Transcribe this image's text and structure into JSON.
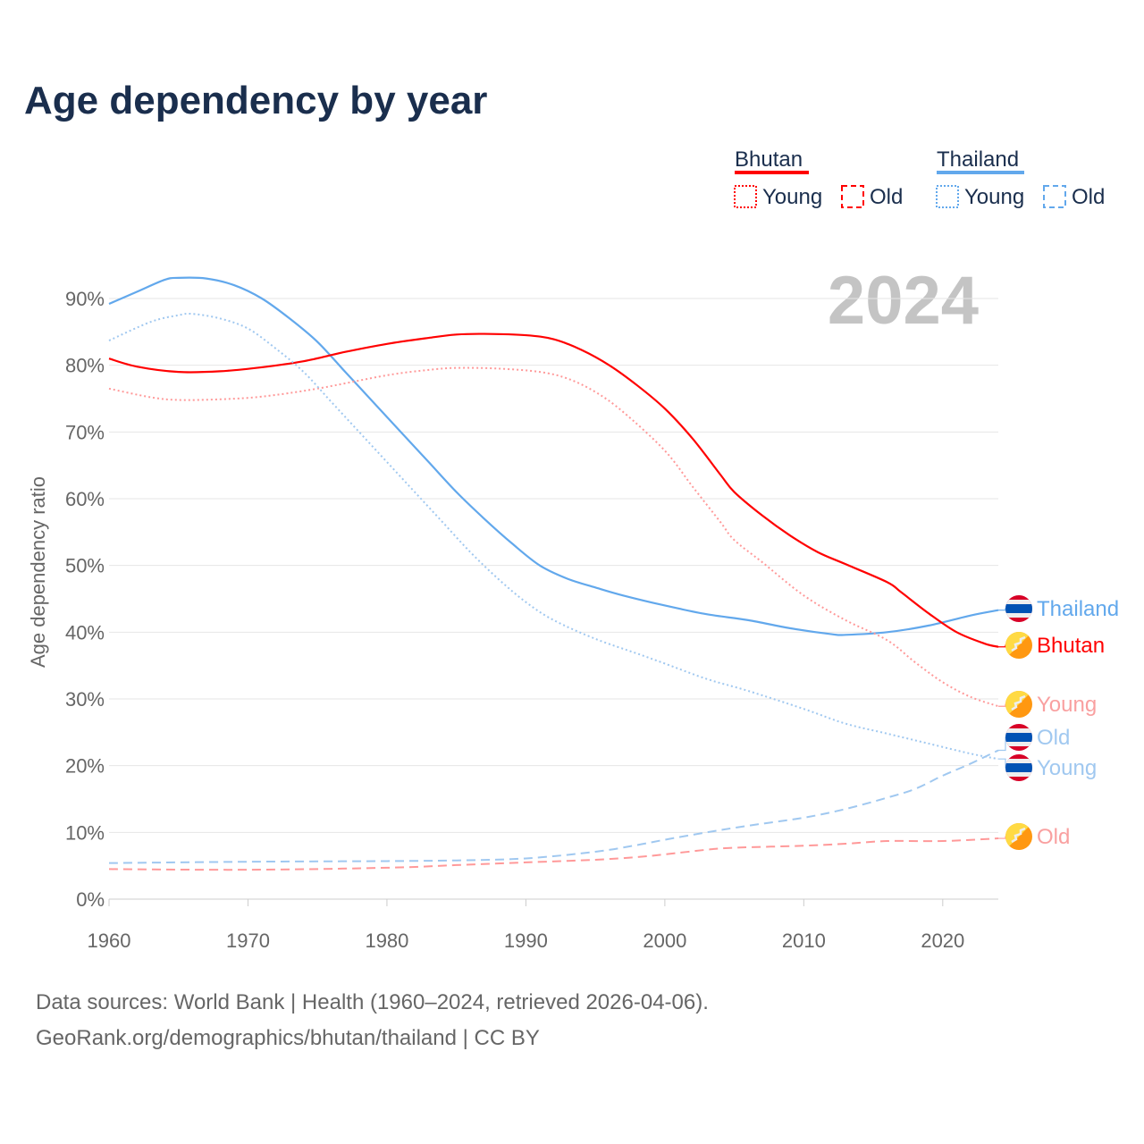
{
  "title": "Age dependency by year",
  "year_badge": "2024",
  "sources": [
    "Data sources: World Bank | Health (1960–2024, retrieved 2026-04-06).",
    "GeoRank.org/demographics/bhutan/thailand | CC BY"
  ],
  "legend": {
    "groups": [
      {
        "name": "Bhutan",
        "color": "#ff0000",
        "items": [
          "Young",
          "Old"
        ]
      },
      {
        "name": "Thailand",
        "color": "#62a8ec",
        "items": [
          "Young",
          "Old"
        ]
      }
    ]
  },
  "chart_data": {
    "type": "line",
    "title": "Age dependency by year",
    "xlabel": "",
    "ylabel": "Age dependency ratio",
    "xlim": [
      1960,
      2024
    ],
    "ylim": [
      0,
      90
    ],
    "xticks": [
      "1960",
      "1970",
      "1980",
      "1990",
      "2000",
      "2010",
      "2020"
    ],
    "yticks": [
      "0%",
      "10%",
      "20%",
      "30%",
      "40%",
      "50%",
      "60%",
      "70%",
      "80%",
      "90%"
    ],
    "grid": true,
    "series": [
      {
        "name": "Thailand",
        "label": "Thailand",
        "country": "Thailand",
        "style": "solid",
        "color": "#62a8ec",
        "labelColor": "#62a8ec",
        "points": [
          [
            1960,
            89.2
          ],
          [
            1962,
            91
          ],
          [
            1964,
            92.8
          ],
          [
            1965,
            93.1
          ],
          [
            1967,
            93
          ],
          [
            1969,
            92
          ],
          [
            1971,
            90
          ],
          [
            1973,
            87
          ],
          [
            1975,
            83.5
          ],
          [
            1977,
            79
          ],
          [
            1979,
            74.5
          ],
          [
            1981,
            70
          ],
          [
            1983,
            65.5
          ],
          [
            1985,
            61
          ],
          [
            1987,
            57
          ],
          [
            1989,
            53.3
          ],
          [
            1991,
            50
          ],
          [
            1993,
            48
          ],
          [
            1995,
            46.7
          ],
          [
            1997,
            45.5
          ],
          [
            2000,
            44
          ],
          [
            2003,
            42.7
          ],
          [
            2006,
            41.8
          ],
          [
            2009,
            40.6
          ],
          [
            2012,
            39.7
          ],
          [
            2013,
            39.6
          ],
          [
            2016,
            40
          ],
          [
            2019,
            41
          ],
          [
            2022,
            42.5
          ],
          [
            2024,
            43.3
          ]
        ]
      },
      {
        "name": "Bhutan",
        "label": "Bhutan",
        "country": "Bhutan",
        "style": "solid",
        "color": "#ff0000",
        "labelColor": "#ff0000",
        "points": [
          [
            1960,
            81
          ],
          [
            1962,
            79.8
          ],
          [
            1965,
            79
          ],
          [
            1968,
            79.1
          ],
          [
            1971,
            79.7
          ],
          [
            1974,
            80.6
          ],
          [
            1977,
            82
          ],
          [
            1980,
            83.2
          ],
          [
            1983,
            84.1
          ],
          [
            1985,
            84.6
          ],
          [
            1987,
            84.7
          ],
          [
            1990,
            84.5
          ],
          [
            1992,
            83.9
          ],
          [
            1994,
            82.3
          ],
          [
            1996,
            80
          ],
          [
            1998,
            77
          ],
          [
            2000,
            73.5
          ],
          [
            2002,
            69
          ],
          [
            2004,
            63.6
          ],
          [
            2005,
            61
          ],
          [
            2007,
            57.5
          ],
          [
            2009,
            54.5
          ],
          [
            2011,
            52
          ],
          [
            2013,
            50.2
          ],
          [
            2016,
            47.5
          ],
          [
            2017,
            46
          ],
          [
            2019,
            42.8
          ],
          [
            2021,
            40
          ],
          [
            2023,
            38.3
          ],
          [
            2024,
            37.8
          ]
        ]
      },
      {
        "name": "Bhutan Young",
        "label": "Young",
        "country": "Bhutan",
        "style": "dotted",
        "color": "#f99",
        "labelColor": "#f9a0a0",
        "points": [
          [
            1960,
            76.5
          ],
          [
            1963,
            75.2
          ],
          [
            1965,
            74.8
          ],
          [
            1968,
            74.9
          ],
          [
            1971,
            75.3
          ],
          [
            1975,
            76.5
          ],
          [
            1980,
            78.5
          ],
          [
            1983,
            79.3
          ],
          [
            1985,
            79.6
          ],
          [
            1988,
            79.5
          ],
          [
            1991,
            79
          ],
          [
            1993,
            78
          ],
          [
            1995,
            76
          ],
          [
            1997,
            73
          ],
          [
            2000,
            67.2
          ],
          [
            2002,
            61.8
          ],
          [
            2004,
            56.5
          ],
          [
            2005,
            53.8
          ],
          [
            2007,
            50.5
          ],
          [
            2010,
            45.5
          ],
          [
            2013,
            41.8
          ],
          [
            2016,
            38.8
          ],
          [
            2018,
            35.5
          ],
          [
            2020,
            32.5
          ],
          [
            2022,
            30.3
          ],
          [
            2024,
            28.9
          ]
        ]
      },
      {
        "name": "Thailand Old",
        "label": "Old",
        "country": "Thailand",
        "style": "dashed",
        "color": "#a0c8f0",
        "labelColor": "#a0c8f0",
        "points": [
          [
            1960,
            5.4
          ],
          [
            1970,
            5.6
          ],
          [
            1980,
            5.7
          ],
          [
            1985,
            5.8
          ],
          [
            1990,
            6.1
          ],
          [
            1995,
            7.1
          ],
          [
            1998,
            8.1
          ],
          [
            2000,
            8.9
          ],
          [
            2003,
            10
          ],
          [
            2006,
            11
          ],
          [
            2010,
            12.2
          ],
          [
            2013,
            13.5
          ],
          [
            2016,
            15.2
          ],
          [
            2018,
            16.5
          ],
          [
            2020,
            18.5
          ],
          [
            2022,
            20.3
          ],
          [
            2024,
            22.3
          ]
        ]
      },
      {
        "name": "Thailand Young",
        "label": "Young",
        "country": "Thailand",
        "style": "dotted",
        "color": "#a0c8f0",
        "labelColor": "#a0c8f0",
        "points": [
          [
            1960,
            83.7
          ],
          [
            1963,
            86.5
          ],
          [
            1965,
            87.5
          ],
          [
            1966,
            87.7
          ],
          [
            1968,
            87
          ],
          [
            1970,
            85.5
          ],
          [
            1972,
            82.5
          ],
          [
            1974,
            79
          ],
          [
            1976,
            74.5
          ],
          [
            1978,
            70
          ],
          [
            1980,
            65.5
          ],
          [
            1982,
            61
          ],
          [
            1984,
            56.5
          ],
          [
            1986,
            52
          ],
          [
            1988,
            48
          ],
          [
            1990,
            44.5
          ],
          [
            1992,
            41.8
          ],
          [
            1995,
            39
          ],
          [
            1998,
            36.8
          ],
          [
            2000,
            35.3
          ],
          [
            2003,
            33
          ],
          [
            2006,
            31.2
          ],
          [
            2010,
            28.5
          ],
          [
            2013,
            26.3
          ],
          [
            2016,
            24.8
          ],
          [
            2019,
            23.3
          ],
          [
            2022,
            21.8
          ],
          [
            2024,
            21
          ]
        ]
      },
      {
        "name": "Bhutan Old",
        "label": "Old",
        "country": "Bhutan",
        "style": "dashed",
        "color": "#f99",
        "labelColor": "#f9a0a0",
        "points": [
          [
            1960,
            4.5
          ],
          [
            1970,
            4.4
          ],
          [
            1980,
            4.7
          ],
          [
            1985,
            5.1
          ],
          [
            1990,
            5.5
          ],
          [
            1995,
            5.9
          ],
          [
            1998,
            6.3
          ],
          [
            2000,
            6.7
          ],
          [
            2003,
            7.4
          ],
          [
            2005,
            7.7
          ],
          [
            2010,
            8
          ],
          [
            2013,
            8.3
          ],
          [
            2016,
            8.7
          ],
          [
            2020,
            8.7
          ],
          [
            2024,
            9.1
          ]
        ]
      }
    ]
  }
}
